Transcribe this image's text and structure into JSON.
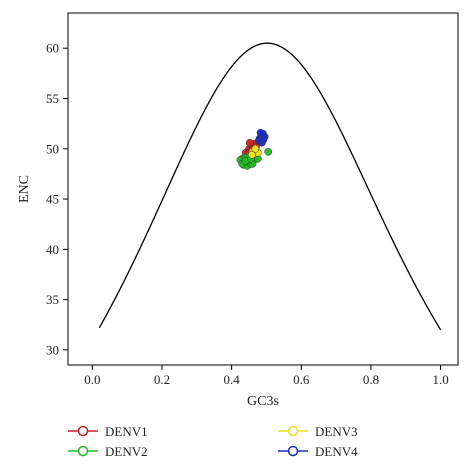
{
  "chart_data": {
    "type": "scatter",
    "title": "",
    "xlabel": "GC3s",
    "ylabel": "ENC",
    "xlim": [
      -0.07,
      1.05
    ],
    "ylim": [
      28.5,
      63.5
    ],
    "xticks": [
      0.0,
      0.2,
      0.4,
      0.6,
      0.8,
      1.0
    ],
    "xtick_labels": [
      "0.0",
      "0.2",
      "0.4",
      "0.6",
      "0.8",
      "1.0"
    ],
    "yticks": [
      30,
      35,
      40,
      45,
      50,
      55,
      60
    ],
    "ytick_labels": [
      "30",
      "35",
      "40",
      "45",
      "50",
      "55",
      "60"
    ],
    "grid": false,
    "legend_position": "bottom",
    "expected_curve": {
      "formula": "ENC = 2 + s + 29 / (s^2 + (1 - s)^2)",
      "color": "#000000"
    },
    "series": [
      {
        "name": "DENV1",
        "color": "#cc2222",
        "points": [
          [
            0.45,
            50.0
          ],
          [
            0.46,
            50.3
          ],
          [
            0.455,
            49.8
          ],
          [
            0.465,
            50.5
          ],
          [
            0.44,
            49.6
          ],
          [
            0.45,
            49.3
          ],
          [
            0.46,
            49.9
          ],
          [
            0.47,
            50.2
          ],
          [
            0.452,
            50.6
          ],
          [
            0.448,
            49.5
          ]
        ]
      },
      {
        "name": "DENV2",
        "color": "#22bb22",
        "points": [
          [
            0.43,
            49.0
          ],
          [
            0.44,
            48.6
          ],
          [
            0.45,
            48.8
          ],
          [
            0.46,
            49.2
          ],
          [
            0.435,
            48.4
          ],
          [
            0.445,
            48.3
          ],
          [
            0.455,
            48.5
          ],
          [
            0.47,
            49.4
          ],
          [
            0.425,
            48.9
          ],
          [
            0.45,
            49.3
          ],
          [
            0.465,
            48.9
          ],
          [
            0.44,
            49.1
          ],
          [
            0.505,
            49.7
          ],
          [
            0.43,
            48.5
          ],
          [
            0.46,
            48.5
          ],
          [
            0.475,
            49.0
          ],
          [
            0.44,
            48.8
          ],
          [
            0.455,
            49.0
          ]
        ]
      },
      {
        "name": "DENV3",
        "color": "#f2e21a",
        "points": [
          [
            0.465,
            49.5
          ],
          [
            0.47,
            49.8
          ],
          [
            0.46,
            49.7
          ],
          [
            0.475,
            49.6
          ],
          [
            0.468,
            50.0
          ],
          [
            0.458,
            49.4
          ]
        ]
      },
      {
        "name": "DENV4",
        "color": "#1a2ecc",
        "points": [
          [
            0.48,
            51.0
          ],
          [
            0.485,
            51.3
          ],
          [
            0.49,
            51.5
          ],
          [
            0.478,
            50.8
          ],
          [
            0.487,
            50.6
          ],
          [
            0.495,
            51.2
          ],
          [
            0.483,
            51.6
          ],
          [
            0.491,
            50.9
          ]
        ]
      }
    ]
  },
  "legend": {
    "items": [
      {
        "label": "DENV1",
        "color": "#cc2222"
      },
      {
        "label": "DENV2",
        "color": "#22bb22"
      },
      {
        "label": "DENV3",
        "color": "#f2e21a"
      },
      {
        "label": "DENV4",
        "color": "#1a2ecc"
      }
    ]
  }
}
